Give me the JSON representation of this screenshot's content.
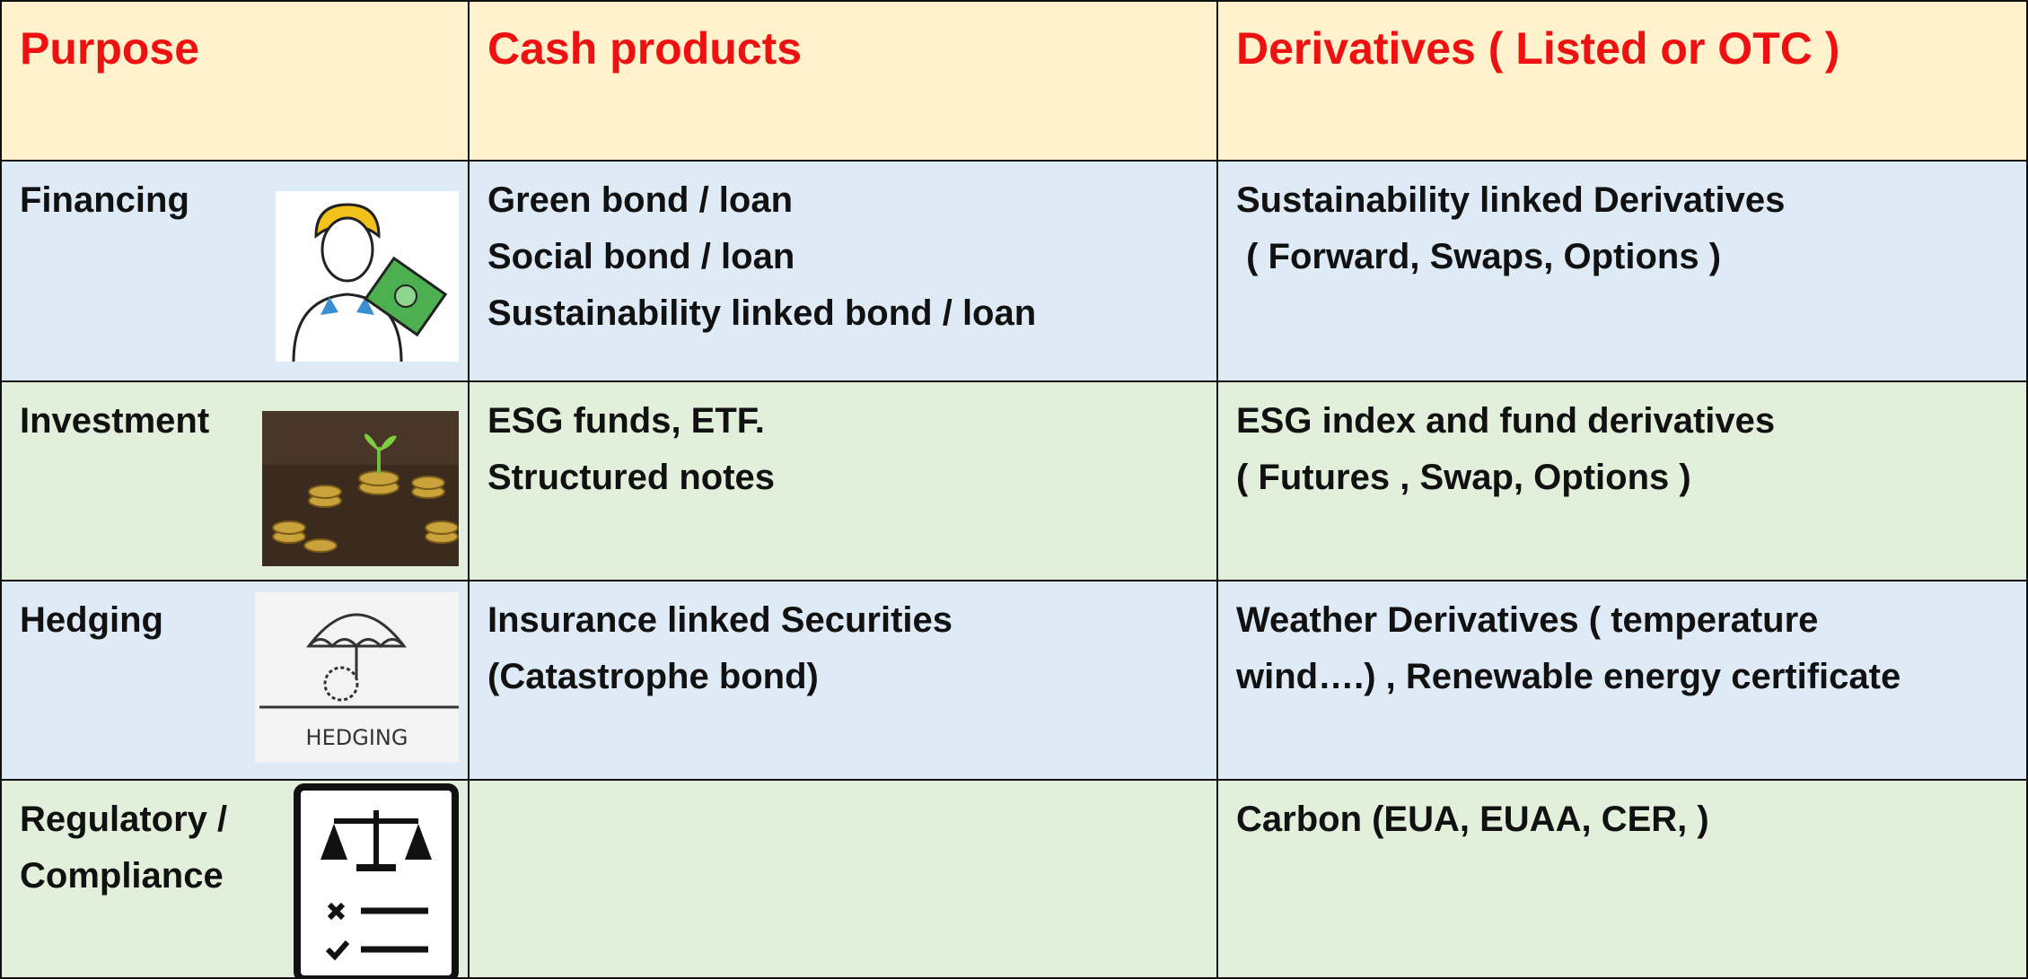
{
  "table": {
    "header": [
      "Purpose",
      "Cash products",
      "Derivatives ( Listed or OTC )"
    ],
    "rows": [
      {
        "purpose": [
          "Financing"
        ],
        "cash": [
          "Green bond / loan",
          "Social bond / loan",
          "Sustainability linked bond / loan"
        ],
        "derivatives": [
          "Sustainability linked Derivatives",
          " ( Forward, Swaps, Options )"
        ]
      },
      {
        "purpose": [
          "Investment"
        ],
        "cash": [
          "ESG funds, ETF.",
          "Structured notes"
        ],
        "derivatives": [
          "ESG index and fund derivatives",
          "( Futures , Swap, Options )"
        ]
      },
      {
        "purpose": [
          "Hedging"
        ],
        "icon_text": "HEDGING",
        "cash": [
          "Insurance linked Securities",
          "(Catastrophe bond)"
        ],
        "derivatives": [
          "Weather Derivatives ( temperature",
          "wind….) , Renewable energy certificate"
        ]
      },
      {
        "purpose": [
          "Regulatory /",
          "Compliance"
        ],
        "cash": [],
        "derivatives": [
          "Carbon (EUA, EUAA, CER, )"
        ]
      }
    ]
  }
}
